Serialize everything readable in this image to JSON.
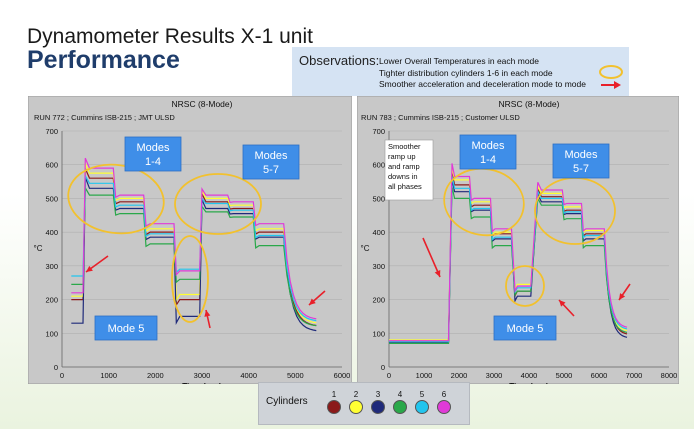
{
  "slide": {
    "title": "Dynamometer Results X-1 unit",
    "subtitle": "Performance"
  },
  "observations": {
    "heading": "Observations:",
    "lines": [
      "Lower Overall Temperatures in each mode",
      "Tighter distribution cylinders 1-6 in each mode",
      "Smoother acceleration and deceleration mode to mode"
    ],
    "legend_marks": [
      "ellipse-icon",
      "arrow-icon"
    ],
    "colors": {
      "ellipse": "#f2c12e",
      "arrow": "#e8202a",
      "box": "#d5e3f3"
    }
  },
  "legend": {
    "title": "Cylinders",
    "items": [
      {
        "num": "1",
        "color": "#8b1a1a"
      },
      {
        "num": "2",
        "color": "#ffff33"
      },
      {
        "num": "3",
        "color": "#1f2a7a"
      },
      {
        "num": "4",
        "color": "#2aa84a"
      },
      {
        "num": "5",
        "color": "#22c5ee"
      },
      {
        "num": "6",
        "color": "#e03ad8"
      }
    ]
  },
  "chart_data": [
    {
      "type": "line",
      "title": "NRSC (8-Mode)",
      "subtitle": "RUN 772 ; Cummins ISB-215 ; JMT ULSD",
      "xlabel": "Time (sec)",
      "ylabel": "°C",
      "xlim": [
        0,
        6000
      ],
      "ylim": [
        0,
        700
      ],
      "xticks": [
        0,
        1000,
        2000,
        3000,
        4000,
        5000,
        6000
      ],
      "yticks": [
        0,
        100,
        200,
        300,
        400,
        500,
        600,
        700
      ],
      "grid": true,
      "callouts": [
        "Modes 1-4",
        "Modes 5-7",
        "Mode 5"
      ],
      "note": "",
      "segments": [
        {
          "t0": 200,
          "t1": 450,
          "v": [
            200,
            210,
            130,
            245,
            270,
            220
          ],
          "trans": "steep"
        },
        {
          "t0": 500,
          "t1": 1100,
          "v": [
            560,
            575,
            530,
            510,
            545,
            590
          ],
          "trans": "fast"
        },
        {
          "t0": 1150,
          "t1": 1750,
          "v": [
            490,
            500,
            470,
            455,
            480,
            510
          ],
          "trans": "fast"
        },
        {
          "t0": 1800,
          "t1": 2400,
          "v": [
            400,
            410,
            385,
            365,
            395,
            425
          ],
          "trans": "fast"
        },
        {
          "t0": 2450,
          "t1": 2950,
          "v": [
            200,
            215,
            150,
            260,
            290,
            285
          ],
          "trans": "fast"
        },
        {
          "t0": 3000,
          "t1": 3550,
          "v": [
            490,
            500,
            470,
            460,
            485,
            510
          ],
          "trans": "fast"
        },
        {
          "t0": 3600,
          "t1": 4100,
          "v": [
            470,
            480,
            455,
            445,
            465,
            490
          ],
          "trans": "fast"
        },
        {
          "t0": 4150,
          "t1": 4650,
          "v": [
            400,
            410,
            385,
            360,
            390,
            425
          ],
          "trans": "fast"
        },
        {
          "t0": 4750,
          "t1": 5450,
          "v": [
            120,
            128,
            105,
            120,
            135,
            140
          ],
          "trans": "decay"
        }
      ]
    },
    {
      "type": "line",
      "title": "NRSC (8-Mode)",
      "subtitle": "RUN 783 ; Cummins ISB-215 ; Customer ULSD",
      "xlabel": "Time (sec)",
      "ylabel": "°C",
      "xlim": [
        0,
        8000
      ],
      "ylim": [
        0,
        700
      ],
      "xticks": [
        0,
        1000,
        2000,
        3000,
        4000,
        5000,
        6000,
        7000,
        8000
      ],
      "yticks": [
        0,
        100,
        200,
        300,
        400,
        500,
        600,
        700
      ],
      "grid": true,
      "callouts": [
        "Modes 1-4",
        "Modes 5-7",
        "Mode 5"
      ],
      "note": "Smoother ramp up and ramp downs in all phases",
      "segments": [
        {
          "t0": 0,
          "t1": 1700,
          "v": [
            75,
            80,
            72,
            70,
            75,
            78
          ],
          "trans": "flat"
        },
        {
          "t0": 1800,
          "t1": 2300,
          "v": [
            540,
            555,
            520,
            500,
            530,
            565
          ],
          "trans": "fast"
        },
        {
          "t0": 2350,
          "t1": 2900,
          "v": [
            480,
            490,
            465,
            445,
            470,
            500
          ],
          "trans": "fast"
        },
        {
          "t0": 2950,
          "t1": 3500,
          "v": [
            395,
            400,
            380,
            360,
            385,
            410
          ],
          "trans": "fast"
        },
        {
          "t0": 3600,
          "t1": 4050,
          "v": [
            225,
            245,
            210,
            225,
            235,
            240
          ],
          "trans": "fast"
        },
        {
          "t0": 4250,
          "t1": 4950,
          "v": [
            505,
            515,
            490,
            480,
            500,
            525
          ],
          "trans": "fast"
        },
        {
          "t0": 5000,
          "t1": 5500,
          "v": [
            465,
            475,
            455,
            440,
            460,
            485
          ],
          "trans": "fast"
        },
        {
          "t0": 5550,
          "t1": 6050,
          "v": [
            395,
            405,
            380,
            360,
            390,
            410
          ],
          "trans": "fast"
        },
        {
          "t0": 6150,
          "t1": 6800,
          "v": [
            95,
            105,
            85,
            100,
            110,
            115
          ],
          "trans": "decay"
        }
      ]
    }
  ]
}
